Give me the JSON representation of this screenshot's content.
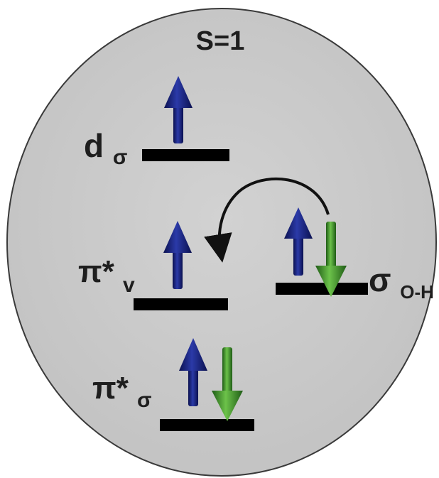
{
  "spin_state": "S=1",
  "colors": {
    "background_disk": "#c8c8c8",
    "disk_outline": "#3a3a3a",
    "level_bar": "#000000",
    "spin_up_arrow": "#1a237e",
    "spin_down_arrow": "#3c8f2a",
    "transfer_arrow": "#111111",
    "label_text": "#1e1e1e"
  },
  "orbitals": [
    {
      "id": "d-sigma",
      "symbol": "d",
      "subscript": "σ",
      "electrons": [
        "up"
      ]
    },
    {
      "id": "pi-star-v",
      "symbol": "π*",
      "subscript": "v",
      "electrons": [
        "up"
      ]
    },
    {
      "id": "sigma-oh",
      "symbol": "σ",
      "subscript": "O-H",
      "electrons": [
        "up",
        "down"
      ]
    },
    {
      "id": "pi-star-sigma",
      "symbol": "π*",
      "subscript": "σ",
      "electrons": [
        "up",
        "down"
      ]
    }
  ],
  "transfer": {
    "from": "sigma-oh",
    "to": "pi-star-v",
    "icon": "curved-arrow-icon"
  }
}
